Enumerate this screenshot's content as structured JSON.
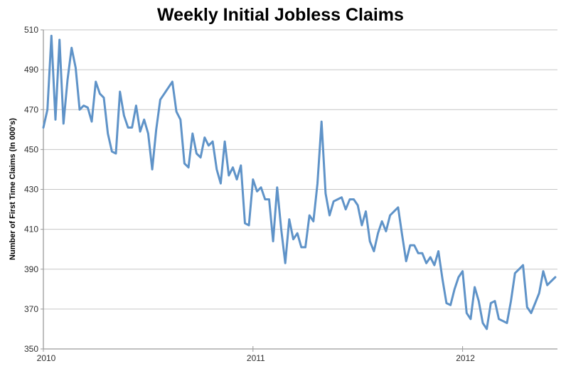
{
  "title": "Weekly Initial Jobless Claims",
  "chart_data": {
    "type": "line",
    "title": "Weekly Initial Jobless Claims",
    "xlabel": "",
    "ylabel": "Number of First Time Claims (In 000's)",
    "x_unit": "week",
    "x_tick_labels": [
      "2010",
      "2011",
      "2012"
    ],
    "x_tick_week_indices": [
      0,
      52,
      104
    ],
    "ylim": [
      350,
      510
    ],
    "y_tick_step": 20,
    "grid": true,
    "legend_position": "none",
    "series": [
      {
        "name": "Weekly Initial Jobless Claims (In 000's)",
        "values": [
          461,
          470,
          507,
          465,
          505,
          463,
          485,
          501,
          491,
          470,
          472,
          471,
          464,
          484,
          478,
          476,
          458,
          449,
          448,
          479,
          467,
          461,
          461,
          472,
          459,
          465,
          458,
          440,
          460,
          475,
          478,
          481,
          484,
          469,
          465,
          443,
          441,
          458,
          448,
          446,
          456,
          452,
          454,
          440,
          433,
          454,
          437,
          441,
          435,
          442,
          413,
          412,
          435,
          429,
          431,
          425,
          425,
          404,
          431,
          410,
          393,
          415,
          405,
          408,
          401,
          401,
          417,
          414,
          433,
          464,
          428,
          417,
          424,
          425,
          426,
          420,
          425,
          425,
          422,
          412,
          419,
          404,
          399,
          408,
          414,
          409,
          417,
          419,
          421,
          407,
          394,
          402,
          402,
          398,
          398,
          393,
          396,
          392,
          399,
          385,
          373,
          372,
          380,
          386,
          389,
          368,
          365,
          381,
          374,
          363,
          360,
          373,
          374,
          365,
          364,
          363,
          374,
          388,
          390,
          392,
          371,
          368,
          373,
          378,
          389,
          382,
          384,
          386
        ]
      }
    ]
  },
  "colors": {
    "line": "#5f93c8",
    "gridline": "#c6c6c6",
    "axis": "#9a9a9a",
    "tick_text": "#2e2e2e",
    "title_text": "#000000",
    "background": "#ffffff"
  }
}
